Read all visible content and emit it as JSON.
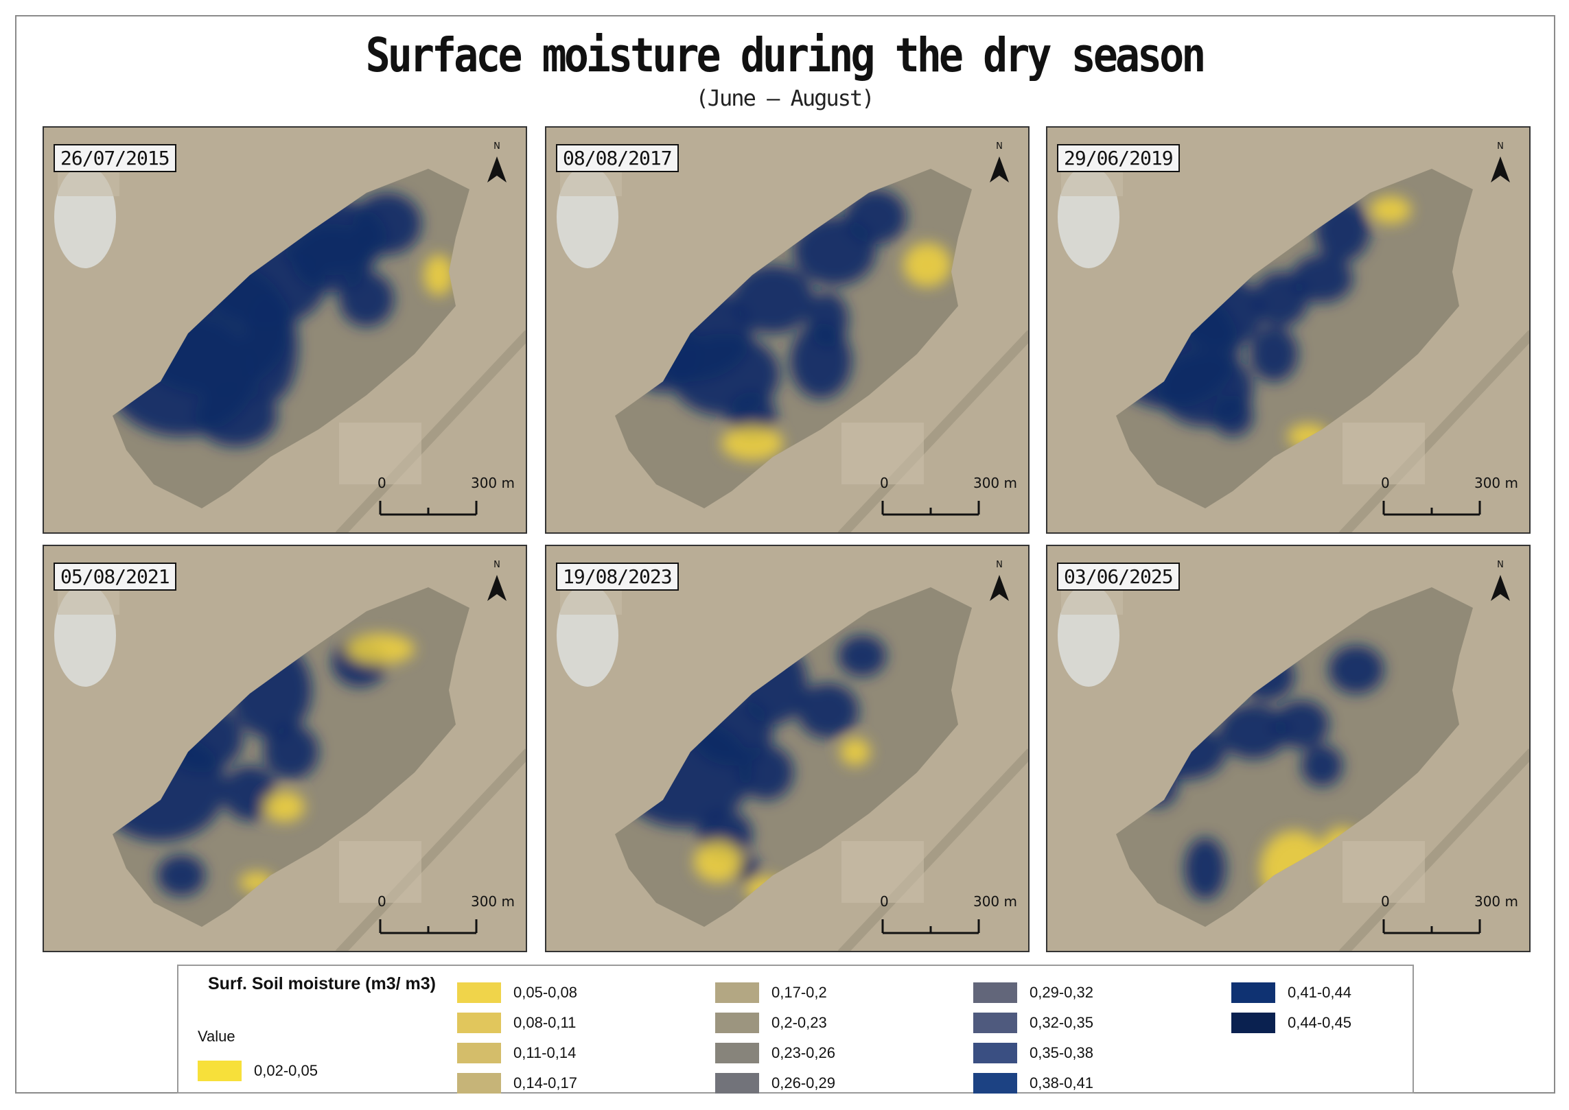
{
  "title": "Surface moisture during the dry season",
  "subtitle": "(June – August)",
  "colors": {
    "imagery": "#b9ad96",
    "field": "#918a77",
    "wet": "#0b2a66",
    "very_wet": "#081e4e",
    "dry": "#f2d33c"
  },
  "panels": [
    {
      "date": "26/07/2015",
      "north_label": "N",
      "scale_zero": "0",
      "scale_distance": "300 m",
      "wet_fraction": 0.75,
      "dry_fraction": 0.03
    },
    {
      "date": "08/08/2017",
      "north_label": "N",
      "scale_zero": "0",
      "scale_distance": "300 m",
      "wet_fraction": 0.55,
      "dry_fraction": 0.06
    },
    {
      "date": "29/06/2019",
      "north_label": "N",
      "scale_zero": "0",
      "scale_distance": "300 m",
      "wet_fraction": 0.5,
      "dry_fraction": 0.04
    },
    {
      "date": "05/08/2021",
      "north_label": "N",
      "scale_zero": "0",
      "scale_distance": "300 m",
      "wet_fraction": 0.45,
      "dry_fraction": 0.03
    },
    {
      "date": "19/08/2023",
      "north_label": "N",
      "scale_zero": "0",
      "scale_distance": "300 m",
      "wet_fraction": 0.45,
      "dry_fraction": 0.05
    },
    {
      "date": "03/06/2025",
      "north_label": "N",
      "scale_zero": "0",
      "scale_distance": "300 m",
      "wet_fraction": 0.3,
      "dry_fraction": 0.08
    }
  ],
  "legend": {
    "title": "Surf. Soil moisture (m3/ m3)",
    "subtitle": "Value",
    "items": [
      {
        "label": "0,02-0,05",
        "color": "#f7e03a"
      },
      {
        "label": "0,05-0,08",
        "color": "#f0d44a"
      },
      {
        "label": "0,08-0,11",
        "color": "#e1c65c"
      },
      {
        "label": "0,11-0,14",
        "color": "#d4bd6a"
      },
      {
        "label": "0,14-0,17",
        "color": "#c6b478"
      },
      {
        "label": "0,17-0,2",
        "color": "#b3a783"
      },
      {
        "label": "0,2-0,23",
        "color": "#9c957f"
      },
      {
        "label": "0,23-0,26",
        "color": "#87847b"
      },
      {
        "label": "0,26-0,29",
        "color": "#72737a"
      },
      {
        "label": "0,29-0,32",
        "color": "#62667a"
      },
      {
        "label": "0,32-0,35",
        "color": "#4f5a7e"
      },
      {
        "label": "0,35-0,38",
        "color": "#3a4f82"
      },
      {
        "label": "0,38-0,41",
        "color": "#1c4283"
      },
      {
        "label": "0,41-0,44",
        "color": "#0f3272"
      },
      {
        "label": "0,44-0,45",
        "color": "#0a2150"
      }
    ]
  }
}
